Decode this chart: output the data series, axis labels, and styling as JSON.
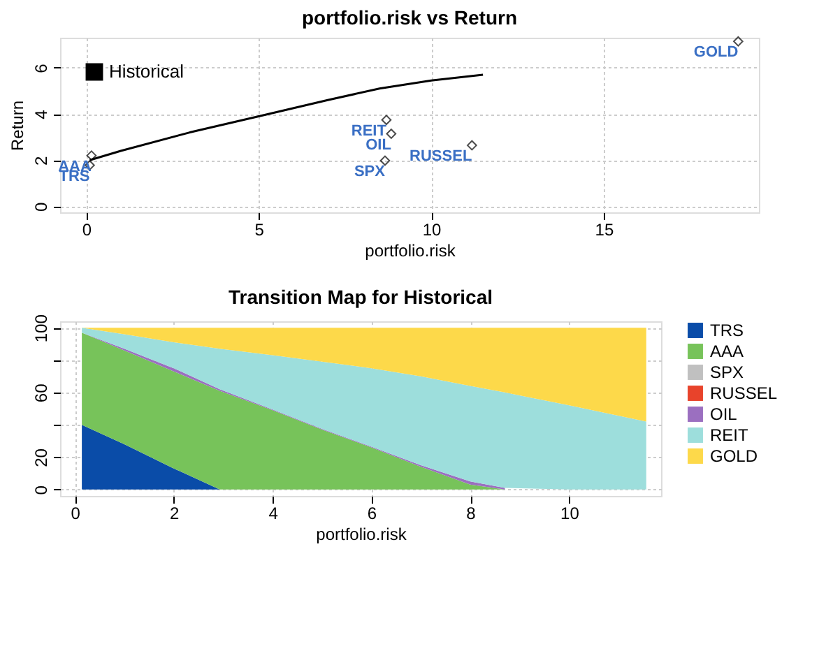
{
  "chart_data": [
    {
      "type": "line",
      "title": "portfolio.risk vs Return",
      "xlabel": "portfolio.risk",
      "ylabel": "Return",
      "xlim": [
        -0.76,
        19.5
      ],
      "ylim": [
        -0.26,
        7.3
      ],
      "xticks": [
        0,
        5,
        10,
        15
      ],
      "yticks": [
        0,
        2,
        4,
        6
      ],
      "grid": true,
      "legend": "top left",
      "series": [
        {
          "name": "Historical",
          "type": "line",
          "color": "#000000",
          "x": [
            0.1,
            1,
            3,
            5,
            7,
            8.5,
            10,
            11.5
          ],
          "values": [
            2.0,
            2.4,
            3.2,
            3.9,
            4.6,
            5.1,
            5.45,
            5.7
          ]
        },
        {
          "type": "scatter",
          "color": "#000000",
          "marker": "diamond",
          "x": [
            0.1,
            0.15,
            8.66,
            11.18,
            8.84,
            8.7,
            18.9
          ],
          "values": [
            1.78,
            2.2,
            1.98,
            2.64,
            3.14,
            3.74,
            7.14
          ]
        }
      ],
      "annotations": [
        {
          "text": "TRS",
          "x": 0.1,
          "y": 1.78
        },
        {
          "text": "AAA",
          "x": 0.15,
          "y": 2.2
        },
        {
          "text": "SPX",
          "x": 8.66,
          "y": 1.98
        },
        {
          "text": "RUSSEL",
          "x": 11.18,
          "y": 2.64
        },
        {
          "text": "OIL",
          "x": 8.84,
          "y": 3.14
        },
        {
          "text": "REIT",
          "x": 8.7,
          "y": 3.74
        },
        {
          "text": "GOLD",
          "x": 18.9,
          "y": 7.14
        }
      ]
    },
    {
      "type": "area",
      "stacked": true,
      "title": "Transition Map for Historical",
      "xlabel": "portfolio.risk",
      "x": [
        0.14,
        1,
        2,
        2.93,
        4,
        5,
        6,
        7,
        8,
        8.7,
        10,
        11.56
      ],
      "xlim": [
        -0.3,
        11.86
      ],
      "ylim": [
        -4,
        104
      ],
      "xticks": [
        0,
        2,
        4,
        6,
        8,
        10
      ],
      "yticks": [
        0,
        20,
        {
          "value": 40,
          "label": null
        },
        60,
        {
          "value": 80,
          "label": null
        },
        100
      ],
      "grid": true,
      "legend": "right",
      "series": [
        {
          "name": "TRS",
          "color": "#0a4ca8",
          "values": [
            40,
            28,
            13,
            0,
            0,
            0,
            0,
            0,
            0,
            0,
            0,
            0
          ]
        },
        {
          "name": "AAA",
          "color": "#77c35a",
          "values": [
            57,
            58,
            60,
            61,
            49,
            37,
            26,
            14,
            3,
            0,
            0,
            0
          ]
        },
        {
          "name": "SPX",
          "color": "#c0c0c0",
          "values": [
            null,
            null,
            null,
            null,
            null,
            null,
            null,
            null,
            null,
            null,
            null,
            null
          ]
        },
        {
          "name": "RUSSEL",
          "color": "#e8432b",
          "values": [
            null,
            null,
            null,
            null,
            null,
            null,
            null,
            null,
            null,
            null,
            null,
            null
          ]
        },
        {
          "name": "OIL",
          "color": "#9b6fc0",
          "values": [
            0,
            1,
            2,
            1,
            0.5,
            0.5,
            0.5,
            1,
            2,
            1,
            null,
            null
          ]
        },
        {
          "name": "REIT",
          "color": "#9ddedc",
          "values": [
            3,
            9,
            16,
            25,
            33.5,
            41.5,
            48.5,
            55,
            59,
            59,
            52,
            42
          ]
        },
        {
          "name": "GOLD",
          "color": "#fdd94a",
          "values": [
            0,
            4,
            9,
            13,
            17,
            21,
            25,
            30,
            36,
            40,
            48,
            58
          ]
        }
      ]
    }
  ]
}
